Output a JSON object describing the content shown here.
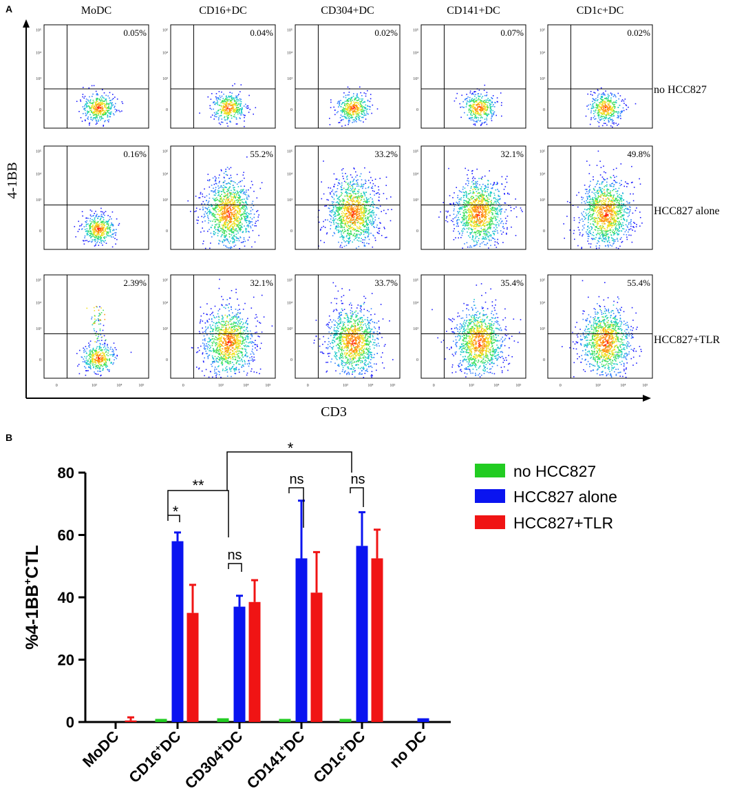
{
  "panel_a": {
    "label": "A",
    "y_axis_label": "4-1BB",
    "x_axis_label": "CD3",
    "columns": [
      "MoDC",
      "CD16+DC",
      "CD304+DC",
      "CD141+DC",
      "CD1c+DC"
    ],
    "rows": [
      "no HCC827",
      "HCC827 alone",
      "HCC827+TLR"
    ],
    "x_ticks": [
      "0",
      "10³",
      "10⁴",
      "10⁵"
    ],
    "y_ticks": [
      "10⁵",
      "10⁴",
      "10³",
      "0"
    ],
    "percentages": [
      [
        "0.05%",
        "0.04%",
        "0.02%",
        "0.07%",
        "0.02%"
      ],
      [
        "0.16%",
        "55.2%",
        "33.2%",
        "32.1%",
        "49.8%"
      ],
      [
        "2.39%",
        "32.1%",
        "33.7%",
        "35.4%",
        "55.4%"
      ]
    ]
  },
  "panel_b": {
    "label": "B"
  },
  "chart_data": {
    "type": "bar",
    "title": "",
    "xlabel": "",
    "ylabel": "%4-1BB+CTL",
    "ylabel_parts": {
      "prefix": "%4-1BB",
      "sup": "+",
      "suffix": "CTL"
    },
    "ylim": [
      0,
      80
    ],
    "yticks": [
      0,
      20,
      40,
      60,
      80
    ],
    "categories": [
      {
        "base": "MoDC",
        "sup": "",
        "suffix": ""
      },
      {
        "base": "CD16",
        "sup": "+",
        "suffix": "DC"
      },
      {
        "base": "CD304",
        "sup": "+",
        "suffix": "DC"
      },
      {
        "base": "CD141",
        "sup": "+",
        "suffix": "DC"
      },
      {
        "base": "CD1c",
        "sup": "+",
        "suffix": "DC"
      },
      {
        "base": "no DC",
        "sup": "",
        "suffix": ""
      }
    ],
    "series": [
      {
        "name": "no HCC827",
        "color": "#22cc22",
        "values": [
          0,
          1.0,
          1.2,
          1.0,
          1.0,
          0
        ],
        "errors": [
          0,
          0,
          0,
          0,
          0,
          0
        ]
      },
      {
        "name": "HCC827 alone",
        "color": "#0a14f0",
        "values": [
          0,
          58.0,
          37.0,
          52.5,
          56.5,
          1.2
        ],
        "errors": [
          0,
          2.8,
          3.5,
          18.5,
          10.8,
          0
        ]
      },
      {
        "name": "HCC827+TLR",
        "color": "#f01414",
        "values": [
          0.5,
          35.0,
          38.5,
          41.5,
          52.5,
          0
        ],
        "errors": [
          1.0,
          9.0,
          7.0,
          13.0,
          9.2,
          0
        ]
      }
    ],
    "legend_position": "top-right",
    "significance": [
      {
        "label": "*",
        "between": "CD16+DC HCC827 alone vs HCC827+TLR"
      },
      {
        "label": "**",
        "between": "CD16+DC vs CD304+DC"
      },
      {
        "label": "ns",
        "between": "CD304+DC HCC827 alone vs HCC827+TLR"
      },
      {
        "label": "*",
        "between": "CD304+DC vs CD1c+DC"
      },
      {
        "label": "ns",
        "between": "CD141+DC HCC827 alone vs HCC827+TLR"
      },
      {
        "label": "ns",
        "between": "CD1c+DC HCC827 alone vs HCC827+TLR"
      }
    ]
  }
}
